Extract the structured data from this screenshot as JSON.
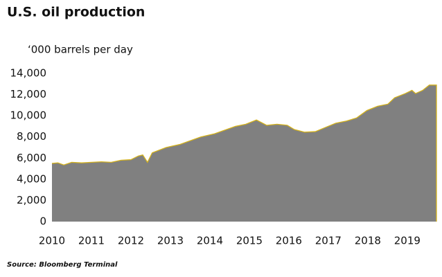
{
  "chart_data": {
    "type": "area",
    "title": "U.S. oil production",
    "subtitle": "‘000 barrels per day",
    "source": "Source: Bloomberg Terminal",
    "x": [
      2010,
      2010.15,
      2010.3,
      2010.5,
      2010.75,
      2011,
      2011.25,
      2011.5,
      2011.75,
      2012,
      2012.19,
      2012.3,
      2012.42,
      2012.54,
      2012.89,
      2013.25,
      2013.77,
      2014.12,
      2014.65,
      2014.91,
      2015.18,
      2015.44,
      2015.7,
      2015.96,
      2016.14,
      2016.4,
      2016.67,
      2016.93,
      2017.19,
      2017.46,
      2017.72,
      2017.98,
      2018.25,
      2018.51,
      2018.68,
      2018.95,
      2019.12,
      2019.21,
      2019.39,
      2019.56,
      2019.74
    ],
    "values": [
      5500,
      5550,
      5350,
      5600,
      5550,
      5600,
      5650,
      5600,
      5800,
      5850,
      6200,
      6300,
      5600,
      6500,
      7000,
      7300,
      8000,
      8300,
      9000,
      9200,
      9600,
      9100,
      9200,
      9100,
      8700,
      8450,
      8500,
      8900,
      9300,
      9500,
      9800,
      10500,
      10900,
      11100,
      11700,
      12100,
      12400,
      12100,
      12400,
      12900,
      12900
    ],
    "color": "#808080",
    "edge_color": "#d4b21c",
    "xlim": [
      2010,
      2019.74
    ],
    "xticks": [
      2010,
      2011,
      2012,
      2013,
      2014,
      2015,
      2016,
      2017,
      2018,
      2019
    ],
    "ylim": [
      0,
      14000
    ],
    "yticks": [
      0,
      {
        "value": 2000,
        "label": "2,000"
      },
      {
        "value": 4000,
        "label": "4,000"
      },
      {
        "value": 6000,
        "label": "6,000"
      },
      {
        "value": 8000,
        "label": "8,000"
      },
      {
        "value": 10000,
        "label": "10,000"
      },
      {
        "value": 12000,
        "label": "12,000"
      },
      {
        "value": 14000,
        "label": "14,000"
      }
    ],
    "grid": false
  }
}
